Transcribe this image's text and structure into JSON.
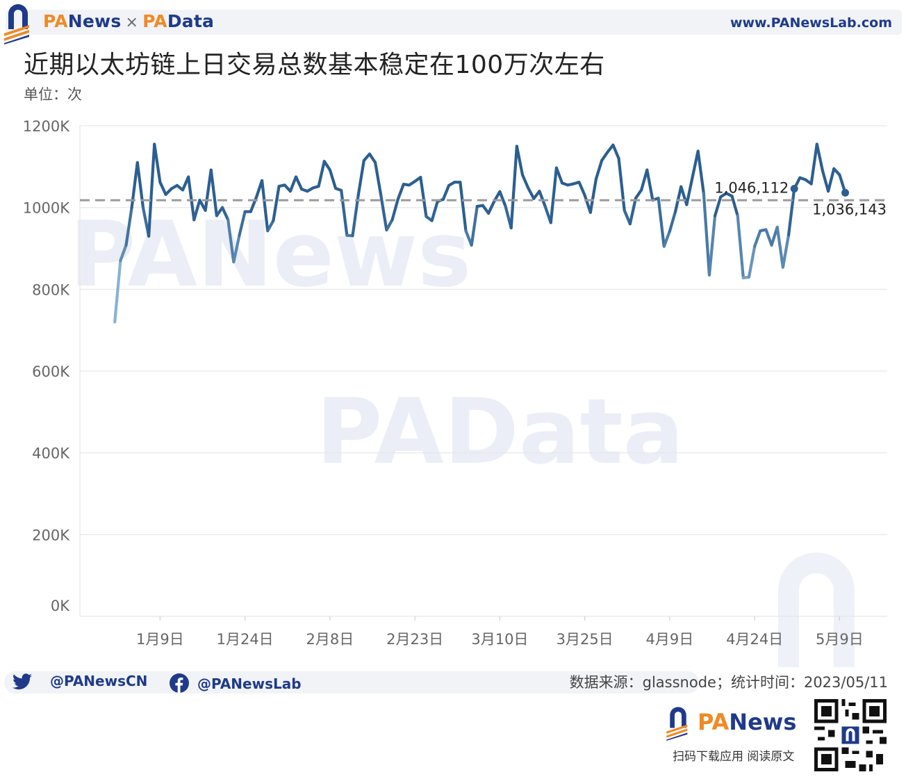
{
  "header": {
    "brand_left_pa": "PA",
    "brand_left_rest": "News",
    "brand_sep": "×",
    "brand_right_pa": "PA",
    "brand_right_rest": "Data",
    "site_url": "www.PANewsLab.com"
  },
  "title": "近期以太坊链上日交易总数基本稳定在100万次左右",
  "unit": "单位：次",
  "watermarks": {
    "panews": "PANews",
    "padata": "PAData"
  },
  "colors": {
    "brand_blue": "#1f3a8a",
    "brand_orange": "#f08a24",
    "line_low": "#a9d0ea",
    "line_high": "#2c5f91",
    "reference_line": "#9a9a9a"
  },
  "chart_data": {
    "type": "line",
    "x_start": "2023-01-01",
    "x_end": "2023-05-10",
    "series": [
      {
        "values": [
          720000,
          870000,
          908000,
          1000000,
          1110000,
          1000000,
          930000,
          1155000,
          1062000,
          1032000,
          1046000,
          1054000,
          1043000,
          1075000,
          970000,
          1018000,
          993000,
          1092000,
          980000,
          1000000,
          970000,
          867000,
          932000,
          990000,
          990000,
          1025000,
          1066000,
          943000,
          968000,
          1052000,
          1055000,
          1040000,
          1075000,
          1045000,
          1040000,
          1048000,
          1052000,
          1113000,
          1092000,
          1047000,
          1042000,
          932000,
          931000,
          1030000,
          1115000,
          1131000,
          1110000,
          1030000,
          945000,
          970000,
          1020000,
          1057000,
          1055000,
          1064000,
          1074000,
          978000,
          968000,
          1015000,
          1020000,
          1054000,
          1062000,
          1062000,
          943000,
          908000,
          1003000,
          1005000,
          986000,
          1015000,
          1039000,
          1003000,
          950000,
          1150000,
          1080000,
          1048000,
          1022000,
          1040000,
          1003000,
          963000,
          1097000,
          1060000,
          1055000,
          1058000,
          1062000,
          1030000,
          988000,
          1070000,
          1115000,
          1135000,
          1153000,
          1120000,
          993000,
          960000,
          1023000,
          1043000,
          1092000,
          1018000,
          1023000,
          905000,
          942000,
          990000,
          1051000,
          1007000,
          1073000,
          1138000,
          1035000,
          835000,
          980000,
          1026000,
          1035000,
          1028000,
          980000,
          828000,
          830000,
          905000,
          943000,
          946000,
          908000,
          952000,
          854000,
          933000,
          1046112,
          1073000,
          1068000,
          1058000,
          1155000,
          1090000,
          1040000,
          1095000,
          1080000,
          1036143
        ]
      }
    ],
    "reference_value": 1018000,
    "ylim": [
      0,
      1200000
    ],
    "yticks": [
      "0K",
      "200K",
      "400K",
      "600K",
      "800K",
      "1000K",
      "1200K"
    ],
    "xticks": [
      {
        "date": "2023-01-09",
        "label": "1月9日"
      },
      {
        "date": "2023-01-24",
        "label": "1月24日"
      },
      {
        "date": "2023-02-08",
        "label": "2月8日"
      },
      {
        "date": "2023-02-23",
        "label": "2月23日"
      },
      {
        "date": "2023-03-10",
        "label": "3月10日"
      },
      {
        "date": "2023-03-25",
        "label": "3月25日"
      },
      {
        "date": "2023-04-09",
        "label": "4月9日"
      },
      {
        "date": "2023-04-24",
        "label": "4月24日"
      },
      {
        "date": "2023-05-09",
        "label": "5月9日"
      }
    ],
    "annotations": [
      {
        "date": "2023-05-01",
        "label": "1,046,112",
        "value": 1046112
      },
      {
        "date": "2023-05-10",
        "label": "1,036,143",
        "value": 1036143
      }
    ],
    "grid": true
  },
  "footer": {
    "twitter": "@PANewsCN",
    "facebook": "@PANewsLab",
    "source": "数据来源：glassnode；统计时间：2023/05/11",
    "brand_pa": "PA",
    "brand_rest": "News",
    "caption": "扫码下载应用  阅读原文"
  }
}
